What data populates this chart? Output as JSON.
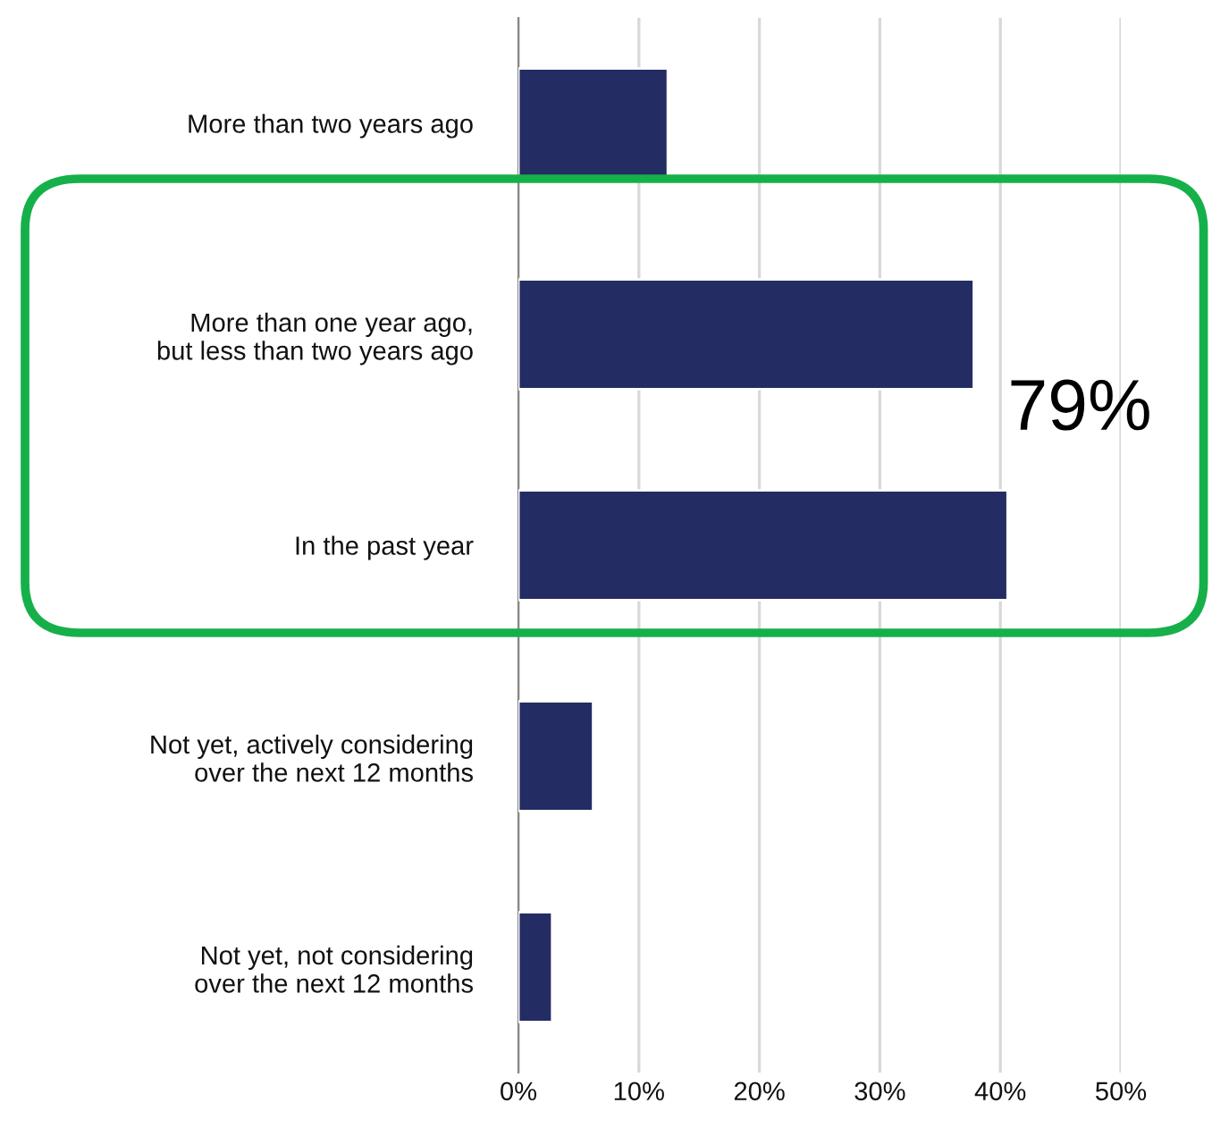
{
  "chart_data": {
    "type": "bar",
    "orientation": "horizontal",
    "categories": [
      "More than two years ago",
      "More than one year ago,\nbut less than two years ago",
      "In the past year",
      "Not yet, actively considering\nover the next 12 months",
      "Not yet, not considering\nover the next 12 months"
    ],
    "values": [
      12.4,
      37.8,
      40.6,
      6.2,
      2.8
    ],
    "color": "#232c63",
    "xlim": [
      0,
      50
    ],
    "xticks": [
      {
        "value": 0,
        "label": "0%"
      },
      {
        "value": 10,
        "label": "10%"
      },
      {
        "value": 20,
        "label": "20%"
      },
      {
        "value": 30,
        "label": "30%"
      },
      {
        "value": 40,
        "label": "40%"
      },
      {
        "value": 50,
        "label": "50%"
      }
    ],
    "grid": "x",
    "annotations": [
      "79%"
    ]
  }
}
